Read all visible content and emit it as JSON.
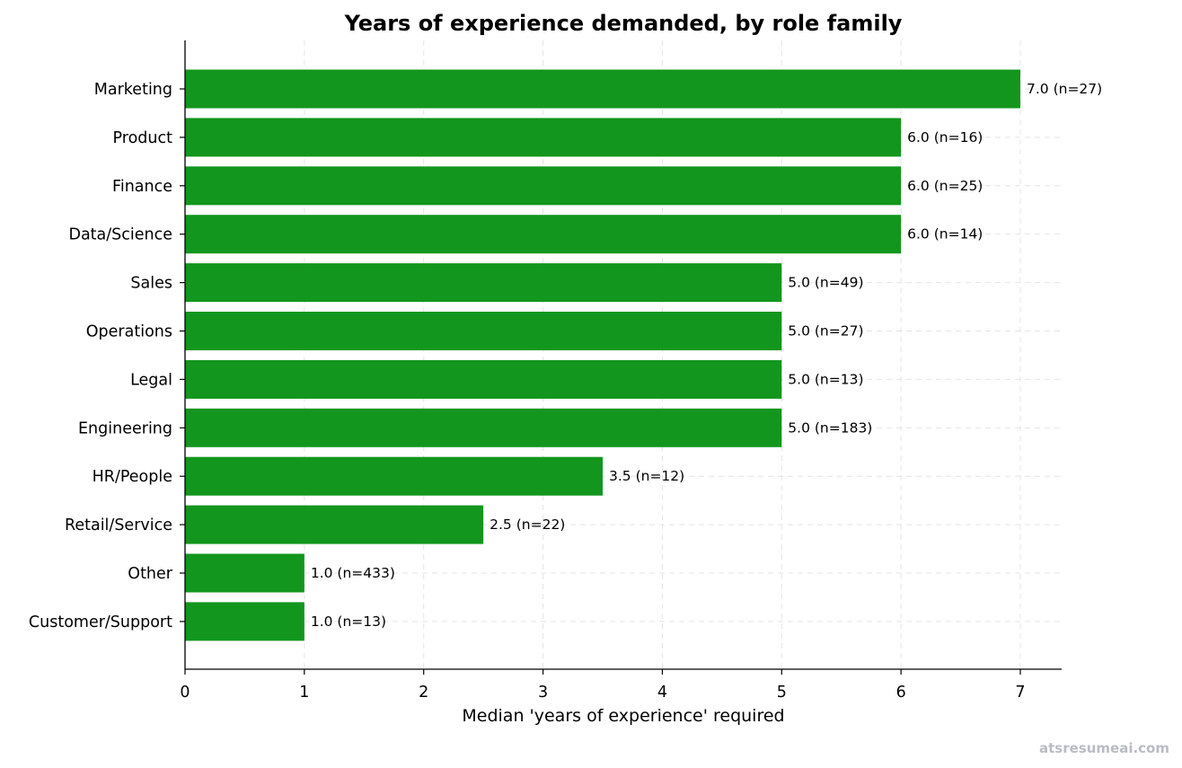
{
  "chart_data": {
    "type": "bar",
    "orientation": "horizontal",
    "title": "Years of experience demanded, by role family",
    "xlabel": "Median 'years of experience' required",
    "ylabel": "",
    "xlim": [
      0,
      7.35
    ],
    "xticks": [
      "0",
      "1",
      "2",
      "3",
      "4",
      "5",
      "6",
      "7"
    ],
    "grid": true,
    "bar_color": "#12961d",
    "categories": [
      "Marketing",
      "Product",
      "Finance",
      "Data/Science",
      "Sales",
      "Operations",
      "Legal",
      "Engineering",
      "HR/People",
      "Retail/Service",
      "Other",
      "Customer/Support"
    ],
    "values": [
      7.0,
      6.0,
      6.0,
      6.0,
      5.0,
      5.0,
      5.0,
      5.0,
      3.5,
      2.5,
      1.0,
      1.0
    ],
    "data_labels": [
      "7.0  (n=27)",
      "6.0  (n=16)",
      "6.0  (n=25)",
      "6.0  (n=14)",
      "5.0  (n=49)",
      "5.0  (n=27)",
      "5.0  (n=13)",
      "5.0  (n=183)",
      "3.5  (n=12)",
      "2.5  (n=22)",
      "1.0  (n=433)",
      "1.0  (n=13)"
    ]
  },
  "watermark": "atsresumeai.com"
}
